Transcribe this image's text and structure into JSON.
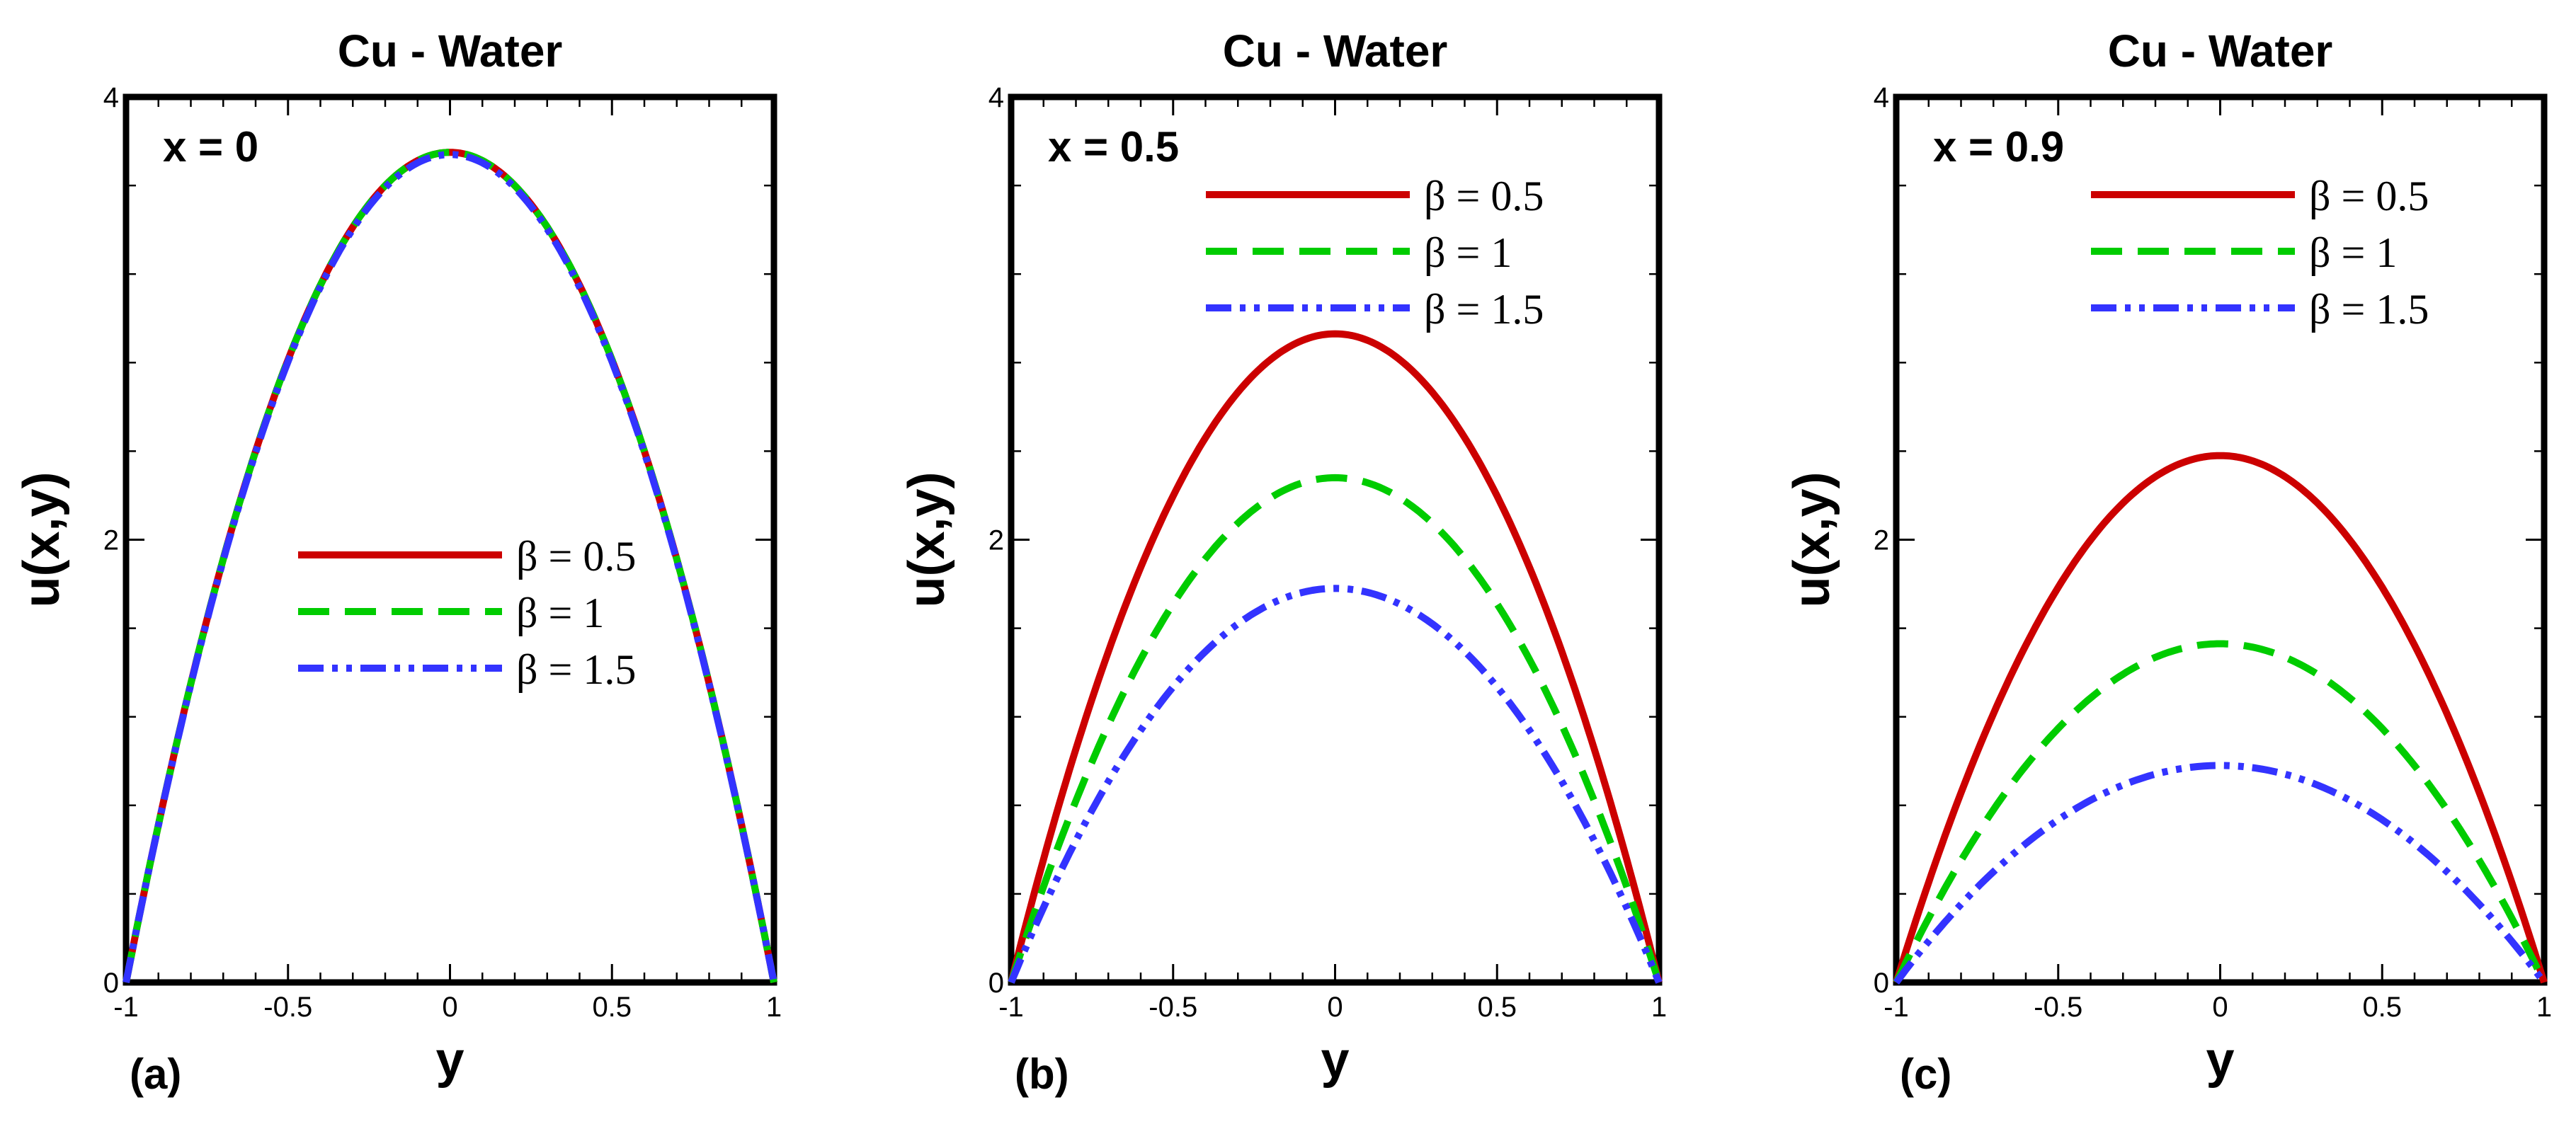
{
  "chart_data": [
    {
      "type": "line",
      "panel_label": "(a)",
      "title": "Cu - Water",
      "annotation": "x = 0",
      "xlabel": "y",
      "ylabel": "u(x,y)",
      "xlim": [
        -1,
        1
      ],
      "ylim": [
        0,
        4
      ],
      "x_ticks": [
        -1,
        -0.5,
        0,
        0.5,
        1
      ],
      "x_tick_labels": [
        "-1",
        "-0.5",
        "0",
        "0.5",
        "1"
      ],
      "y_ticks": [
        0,
        2,
        4
      ],
      "y_tick_labels": [
        "0",
        "2",
        "4"
      ],
      "legend_position": "center",
      "series": [
        {
          "name": "β = 0.5",
          "peak": 3.75,
          "style": "solid",
          "color": "#cc0000"
        },
        {
          "name": "β = 1",
          "peak": 3.75,
          "style": "dashed",
          "color": "#00cc00"
        },
        {
          "name": "β = 1.5",
          "peak": 3.74,
          "style": "dash-dot-dot",
          "color": "#3333ff"
        }
      ]
    },
    {
      "type": "line",
      "panel_label": "(b)",
      "title": "Cu - Water",
      "annotation": "x = 0.5",
      "xlabel": "y",
      "ylabel": "u(x,y)",
      "xlim": [
        -1,
        1
      ],
      "ylim": [
        0,
        4
      ],
      "x_ticks": [
        -1,
        -0.5,
        0,
        0.5,
        1
      ],
      "x_tick_labels": [
        "-1",
        "-0.5",
        "0",
        "0.5",
        "1"
      ],
      "y_ticks": [
        0,
        2,
        4
      ],
      "y_tick_labels": [
        "0",
        "2",
        "4"
      ],
      "legend_position": "top-right",
      "series": [
        {
          "name": "β = 0.5",
          "peak": 2.93,
          "style": "solid",
          "color": "#cc0000"
        },
        {
          "name": "β = 1",
          "peak": 2.28,
          "style": "dashed",
          "color": "#00cc00"
        },
        {
          "name": "β = 1.5",
          "peak": 1.78,
          "style": "dash-dot-dot",
          "color": "#3333ff"
        }
      ]
    },
    {
      "type": "line",
      "panel_label": "(c)",
      "title": "Cu - Water",
      "annotation": "x = 0.9",
      "xlabel": "y",
      "ylabel": "u(x,y)",
      "xlim": [
        -1,
        1
      ],
      "ylim": [
        0,
        4
      ],
      "x_ticks": [
        -1,
        -0.5,
        0,
        0.5,
        1
      ],
      "x_tick_labels": [
        "-1",
        "-0.5",
        "0",
        "0.5",
        "1"
      ],
      "y_ticks": [
        0,
        2,
        4
      ],
      "y_tick_labels": [
        "0",
        "2",
        "4"
      ],
      "legend_position": "top-right",
      "series": [
        {
          "name": "β = 0.5",
          "peak": 2.38,
          "style": "solid",
          "color": "#cc0000"
        },
        {
          "name": "β = 1",
          "peak": 1.53,
          "style": "dashed",
          "color": "#00cc00"
        },
        {
          "name": "β = 1.5",
          "peak": 0.98,
          "style": "dash-dot-dot",
          "color": "#3333ff"
        }
      ]
    }
  ]
}
